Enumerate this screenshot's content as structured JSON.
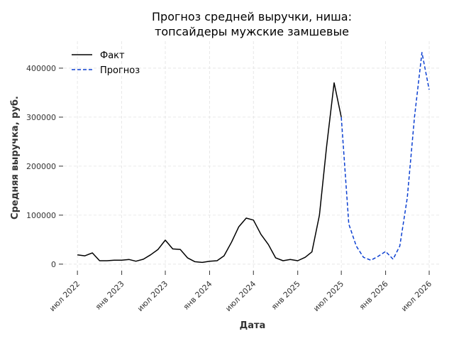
{
  "chart_data": {
    "type": "line",
    "title_lines": [
      "Прогноз средней выручки, ниша:",
      "топсайдеры мужские замшевые"
    ],
    "xlabel": "Дата",
    "ylabel": "Средняя выручка, руб.",
    "x_ticks": [
      {
        "label": "июл 2022",
        "date": "2022-07-01"
      },
      {
        "label": "янв 2023",
        "date": "2023-01-01"
      },
      {
        "label": "июл 2023",
        "date": "2023-07-01"
      },
      {
        "label": "янв 2024",
        "date": "2024-01-01"
      },
      {
        "label": "июл 2024",
        "date": "2024-07-01"
      },
      {
        "label": "янв 2025",
        "date": "2025-01-01"
      },
      {
        "label": "июл 2025",
        "date": "2025-07-01"
      },
      {
        "label": "янв 2026",
        "date": "2026-01-01"
      },
      {
        "label": "июл 2026",
        "date": "2026-07-01"
      }
    ],
    "y_ticks": [
      0,
      100000,
      200000,
      300000,
      400000
    ],
    "xlim": [
      "2022-04-15",
      "2026-08-20"
    ],
    "ylim": [
      -22000,
      455000
    ],
    "grid": true,
    "legend_position": "top-left",
    "series": [
      {
        "name": "Факт",
        "color": "#000000",
        "style": "solid",
        "points": [
          [
            "2022-07-01",
            19000
          ],
          [
            "2022-08-01",
            17000
          ],
          [
            "2022-09-01",
            23000
          ],
          [
            "2022-10-01",
            7000
          ],
          [
            "2022-11-01",
            7000
          ],
          [
            "2022-12-01",
            8000
          ],
          [
            "2023-01-01",
            8000
          ],
          [
            "2023-02-01",
            9500
          ],
          [
            "2023-03-01",
            6000
          ],
          [
            "2023-04-01",
            10000
          ],
          [
            "2023-05-01",
            19000
          ],
          [
            "2023-06-01",
            30000
          ],
          [
            "2023-07-01",
            49000
          ],
          [
            "2023-08-01",
            31000
          ],
          [
            "2023-09-01",
            30000
          ],
          [
            "2023-10-01",
            13000
          ],
          [
            "2023-11-01",
            5000
          ],
          [
            "2023-12-01",
            3500
          ],
          [
            "2024-01-01",
            6000
          ],
          [
            "2024-02-01",
            7000
          ],
          [
            "2024-03-01",
            17000
          ],
          [
            "2024-04-01",
            45000
          ],
          [
            "2024-05-01",
            76000
          ],
          [
            "2024-06-01",
            94000
          ],
          [
            "2024-07-01",
            90000
          ],
          [
            "2024-08-01",
            61000
          ],
          [
            "2024-09-01",
            40000
          ],
          [
            "2024-10-01",
            13000
          ],
          [
            "2024-11-01",
            7000
          ],
          [
            "2024-12-01",
            9500
          ],
          [
            "2025-01-01",
            7000
          ],
          [
            "2025-02-01",
            14000
          ],
          [
            "2025-03-01",
            25000
          ],
          [
            "2025-04-01",
            100000
          ],
          [
            "2025-05-01",
            240000
          ],
          [
            "2025-06-01",
            370000
          ],
          [
            "2025-07-01",
            300000
          ]
        ]
      },
      {
        "name": "Прогноз",
        "color": "#0b3fd1",
        "style": "dashed",
        "points": [
          [
            "2025-07-01",
            300000
          ],
          [
            "2025-08-01",
            82000
          ],
          [
            "2025-09-01",
            37000
          ],
          [
            "2025-10-01",
            14000
          ],
          [
            "2025-11-01",
            8000
          ],
          [
            "2025-12-01",
            16000
          ],
          [
            "2026-01-01",
            26000
          ],
          [
            "2026-02-01",
            10000
          ],
          [
            "2026-03-01",
            37000
          ],
          [
            "2026-04-01",
            135000
          ],
          [
            "2026-05-01",
            300000
          ],
          [
            "2026-06-01",
            432000
          ],
          [
            "2026-07-01",
            356000
          ]
        ]
      }
    ]
  }
}
